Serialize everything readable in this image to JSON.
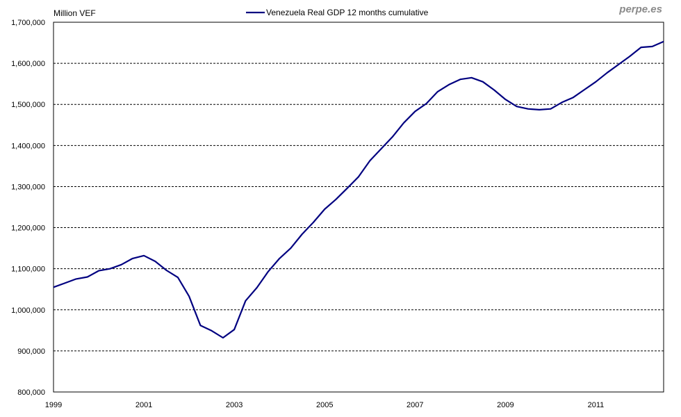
{
  "brand": "perpe.es",
  "chart_data": {
    "type": "line",
    "title": "",
    "ylabel": "Million VEF",
    "xlabel": "",
    "legend_position": "top-center",
    "ylim": [
      800000,
      1700000
    ],
    "xlim": [
      1999.0,
      2012.5
    ],
    "grid": "horizontal dashed",
    "yticks": [
      800000,
      900000,
      1000000,
      1100000,
      1200000,
      1300000,
      1400000,
      1500000,
      1600000,
      1700000
    ],
    "ytick_labels": [
      "800,000",
      "900,000",
      "1,000,000",
      "1,100,000",
      "1,200,000",
      "1,300,000",
      "1,400,000",
      "1,500,000",
      "1,600,000",
      "1,700,000"
    ],
    "xticks": [
      1999,
      2001,
      2003,
      2005,
      2007,
      2009,
      2011
    ],
    "xtick_labels": [
      "1999",
      "2001",
      "2003",
      "2005",
      "2007",
      "2009",
      "2011"
    ],
    "series": [
      {
        "name": "Venezuela Real GDP 12 months cumulative",
        "color": "#000080",
        "x_start": 1999.0,
        "x_step": 0.25,
        "values": [
          1055000,
          1065000,
          1075000,
          1080000,
          1095000,
          1100000,
          1110000,
          1125000,
          1132000,
          1118000,
          1096000,
          1079000,
          1033000,
          962000,
          949000,
          932000,
          952000,
          1022000,
          1054000,
          1093000,
          1125000,
          1150000,
          1184000,
          1213000,
          1245000,
          1269000,
          1296000,
          1324000,
          1363000,
          1392000,
          1421000,
          1455000,
          1483000,
          1502000,
          1531000,
          1548000,
          1561000,
          1565000,
          1555000,
          1535000,
          1512000,
          1495000,
          1489000,
          1487000,
          1489000,
          1505000,
          1517000,
          1536000,
          1555000,
          1577000,
          1597000,
          1617000,
          1639000,
          1641000,
          1653000
        ]
      }
    ]
  }
}
